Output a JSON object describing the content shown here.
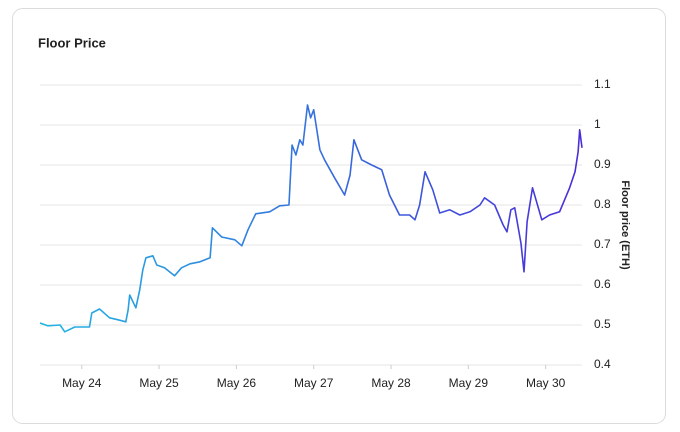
{
  "chart_data": {
    "type": "line",
    "title": "Floor Price",
    "y_label": "Floor price (ETH)",
    "x": [
      23.46,
      23.56,
      23.72,
      23.78,
      23.91,
      24.1,
      24.13,
      24.23,
      24.36,
      24.47,
      24.57,
      24.6,
      24.62,
      24.7,
      24.75,
      24.79,
      24.83,
      24.92,
      24.97,
      25.07,
      25.2,
      25.29,
      25.4,
      25.53,
      25.66,
      25.69,
      25.81,
      25.98,
      26.07,
      26.15,
      26.25,
      26.43,
      26.56,
      26.68,
      26.72,
      26.77,
      26.82,
      26.86,
      26.92,
      26.96,
      27.0,
      27.08,
      27.14,
      27.27,
      27.4,
      27.47,
      27.52,
      27.62,
      27.75,
      27.88,
      27.98,
      28.11,
      28.24,
      28.31,
      28.37,
      28.44,
      28.54,
      28.63,
      28.76,
      28.89,
      29.02,
      29.15,
      29.21,
      29.34,
      29.45,
      29.5,
      29.55,
      29.6,
      29.68,
      29.72,
      29.76,
      29.83,
      29.95,
      30.05,
      30.18,
      30.31,
      30.38,
      30.42,
      30.44,
      30.47
    ],
    "series": [
      {
        "name": "Floor price",
        "gradient": [
          "#22b6e3",
          "#4a2dd8"
        ],
        "values": [
          0.505,
          0.498,
          0.5,
          0.483,
          0.495,
          0.495,
          0.53,
          0.54,
          0.518,
          0.513,
          0.508,
          0.538,
          0.575,
          0.543,
          0.588,
          0.638,
          0.668,
          0.673,
          0.65,
          0.643,
          0.623,
          0.643,
          0.653,
          0.658,
          0.668,
          0.743,
          0.72,
          0.713,
          0.698,
          0.738,
          0.778,
          0.783,
          0.798,
          0.8,
          0.95,
          0.925,
          0.963,
          0.95,
          1.05,
          1.018,
          1.038,
          0.938,
          0.913,
          0.868,
          0.825,
          0.875,
          0.963,
          0.913,
          0.9,
          0.888,
          0.825,
          0.775,
          0.775,
          0.763,
          0.8,
          0.883,
          0.838,
          0.78,
          0.788,
          0.775,
          0.783,
          0.8,
          0.818,
          0.8,
          0.75,
          0.733,
          0.788,
          0.793,
          0.705,
          0.633,
          0.758,
          0.843,
          0.763,
          0.775,
          0.783,
          0.843,
          0.883,
          0.933,
          0.988,
          0.943
        ]
      }
    ],
    "xlim": [
      23.46,
      30.47
    ],
    "xticks": [
      {
        "value": 24,
        "label": "May 24"
      },
      {
        "value": 25,
        "label": "May 25"
      },
      {
        "value": 26,
        "label": "May 26"
      },
      {
        "value": 27,
        "label": "May 27"
      },
      {
        "value": 28,
        "label": "May 28"
      },
      {
        "value": 29,
        "label": "May 29"
      },
      {
        "value": 30,
        "label": "May 30"
      }
    ],
    "ylim": [
      0.4,
      1.1
    ],
    "yticks": [
      0.4,
      0.5,
      0.6,
      0.7,
      0.8,
      0.9,
      1,
      1.1
    ],
    "grid": true
  }
}
